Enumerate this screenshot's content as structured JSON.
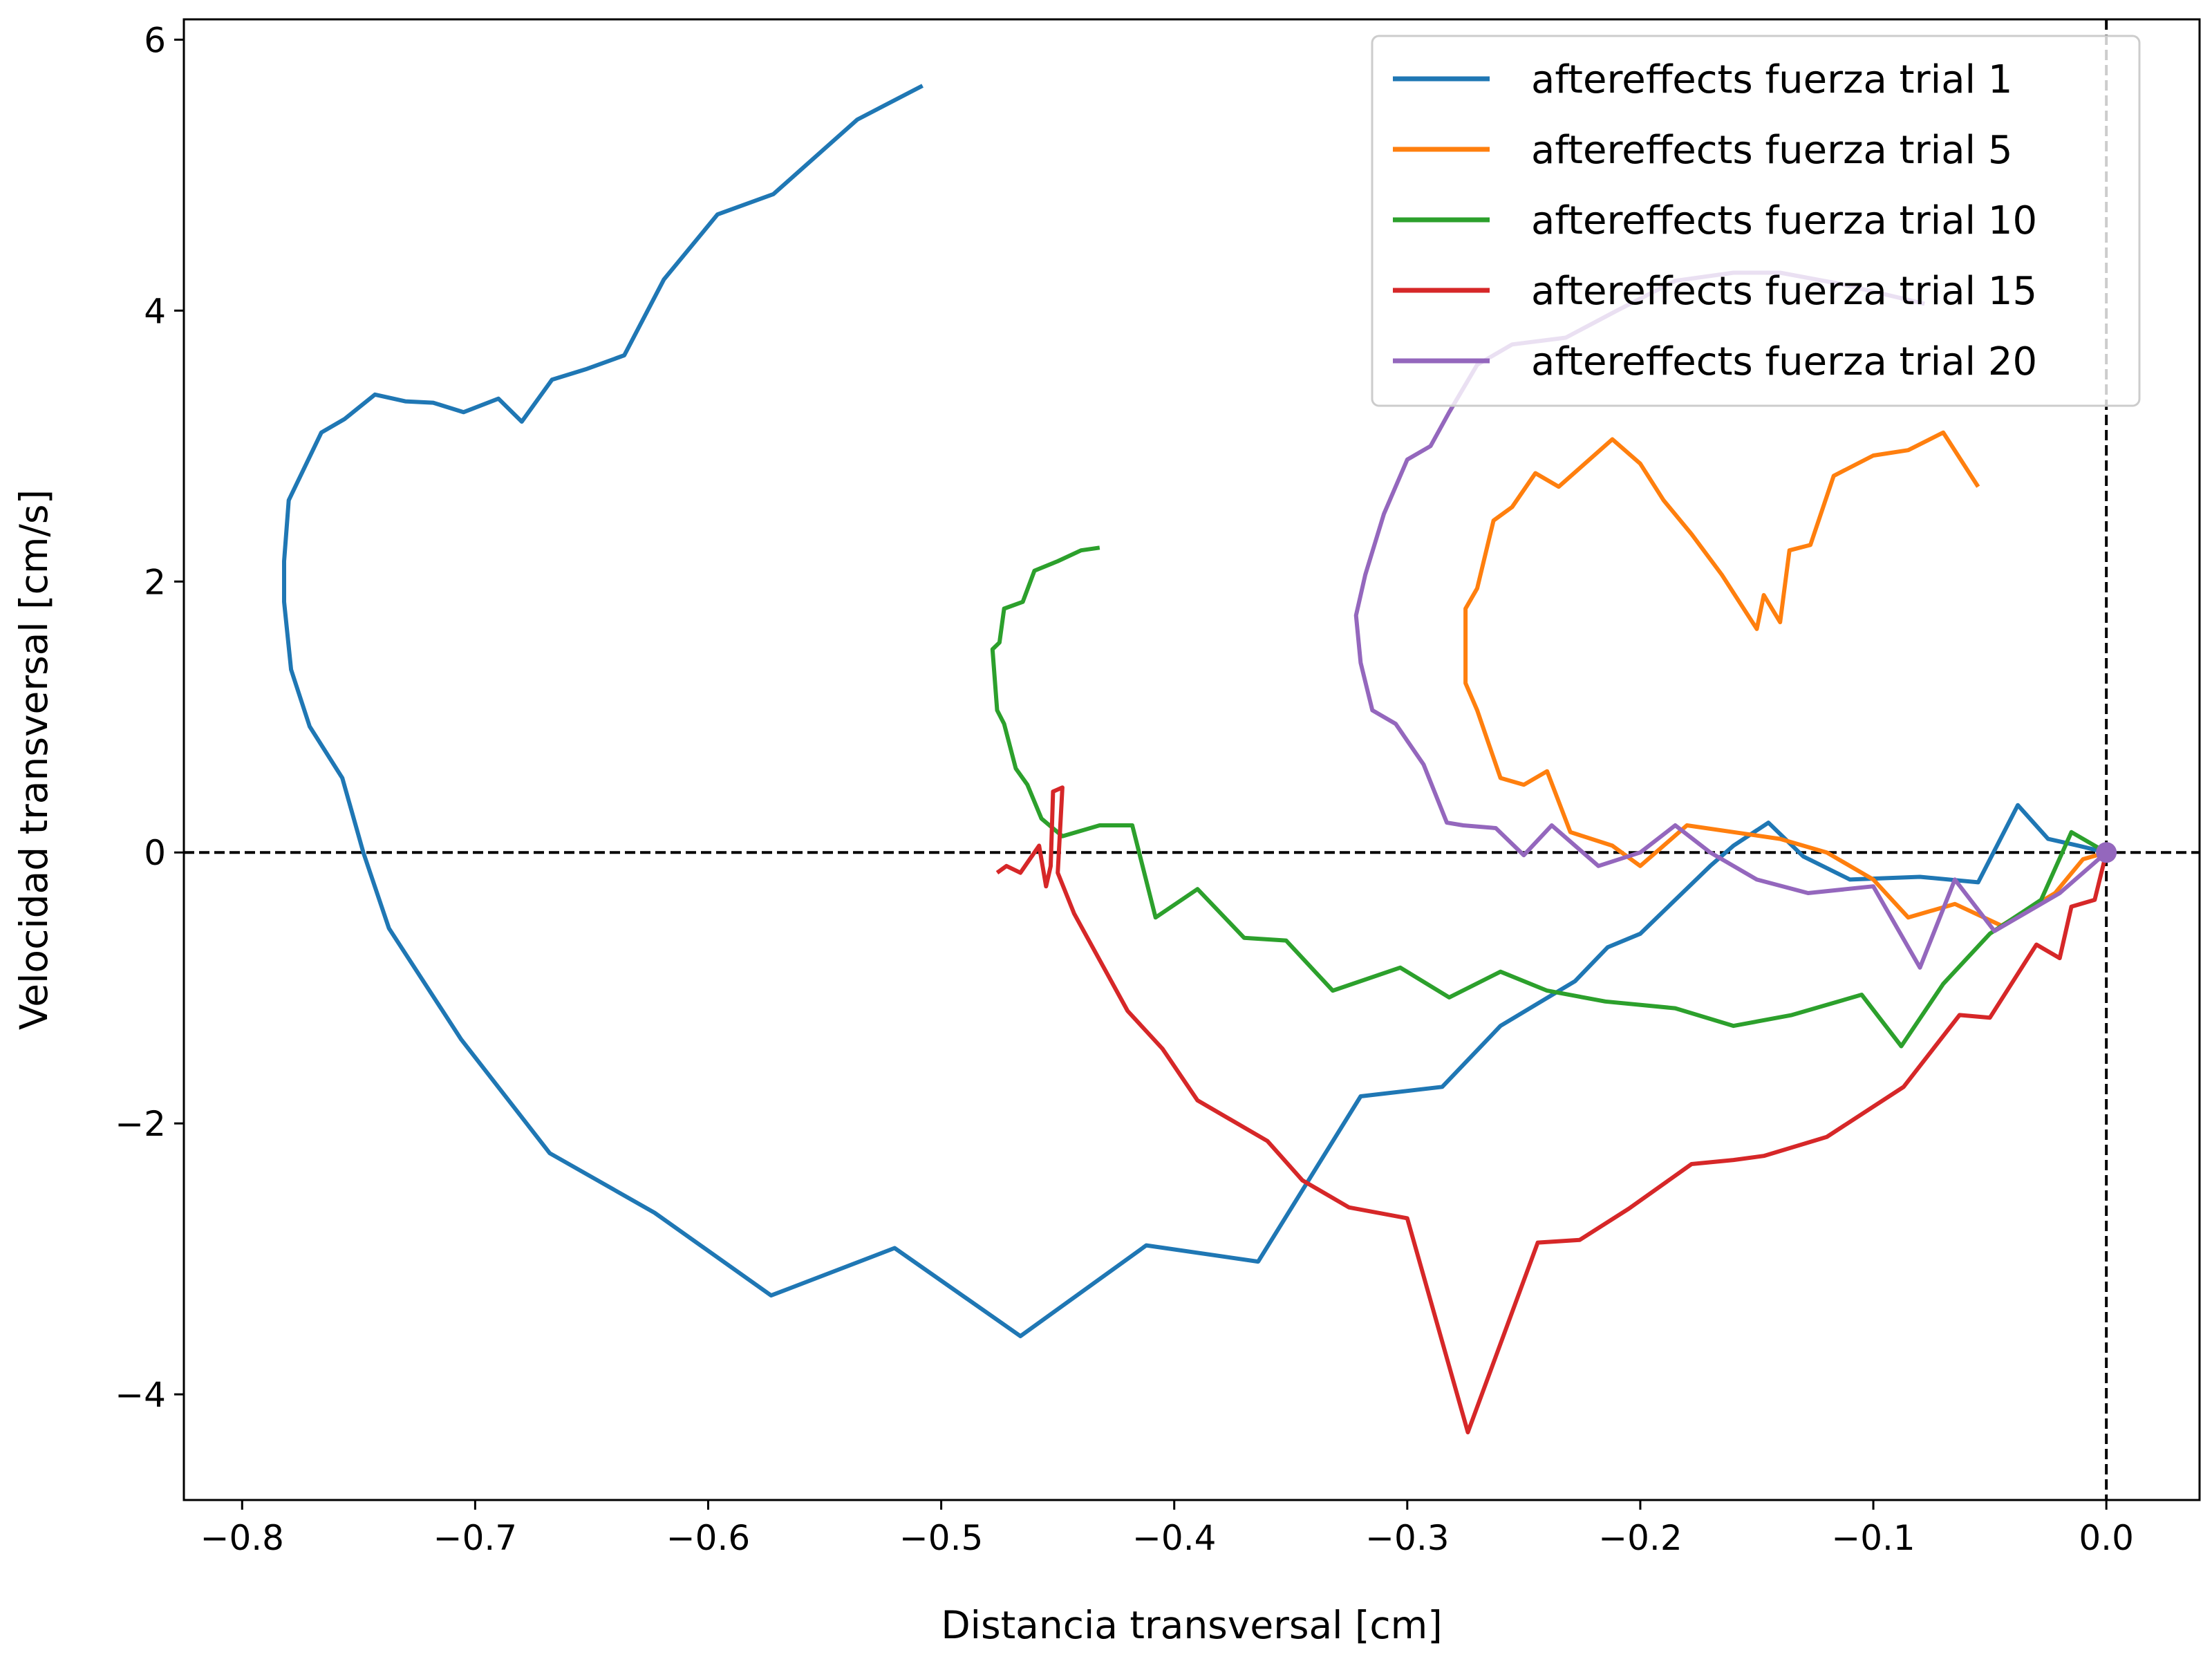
{
  "chart_data": {
    "type": "line",
    "title": "",
    "xlabel": "Distancia transversal [cm]",
    "ylabel": "Velocidad transversal [cm/s]",
    "xlim": [
      -0.825,
      0.04
    ],
    "ylim": [
      -4.78,
      6.15
    ],
    "x_ticks": [
      -0.8,
      -0.7,
      -0.6,
      -0.5,
      -0.4,
      -0.3,
      -0.2,
      -0.1,
      0.0
    ],
    "x_tick_labels": [
      "−0.8",
      "−0.7",
      "−0.6",
      "−0.5",
      "−0.4",
      "−0.3",
      "−0.2",
      "−0.1",
      "0.0"
    ],
    "y_ticks": [
      -4,
      -2,
      0,
      2,
      4,
      6
    ],
    "y_tick_labels": [
      "−4",
      "−2",
      "0",
      "2",
      "4",
      "6"
    ],
    "grid": false,
    "reference_lines": {
      "horizontal_y": 0,
      "vertical_x": 0,
      "style": "dashed",
      "color": "#000000"
    },
    "legend_position": "top-right",
    "end_marker": {
      "x": 0.0,
      "y": 0.0,
      "color": "#9467bd"
    },
    "series": [
      {
        "name": "aftereffects fuerza trial 1",
        "color": "#1f77b4",
        "points": [
          [
            0,
            0
          ],
          [
            -0.012,
            0.05
          ],
          [
            -0.025,
            0.1
          ],
          [
            -0.038,
            0.35
          ],
          [
            -0.055,
            -0.22
          ],
          [
            -0.08,
            -0.18
          ],
          [
            -0.11,
            -0.2
          ],
          [
            -0.13,
            -0.03
          ],
          [
            -0.145,
            0.22
          ],
          [
            -0.16,
            0.05
          ],
          [
            -0.17,
            -0.1
          ],
          [
            -0.2,
            -0.6
          ],
          [
            -0.214,
            -0.7
          ],
          [
            -0.228,
            -0.95
          ],
          [
            -0.26,
            -1.28
          ],
          [
            -0.285,
            -1.73
          ],
          [
            -0.32,
            -1.8
          ],
          [
            -0.364,
            -3.02
          ],
          [
            -0.412,
            -2.9
          ],
          [
            -0.466,
            -3.57
          ],
          [
            -0.52,
            -2.92
          ],
          [
            -0.573,
            -3.27
          ],
          [
            -0.623,
            -2.66
          ],
          [
            -0.668,
            -2.22
          ],
          [
            -0.706,
            -1.38
          ],
          [
            -0.737,
            -0.56
          ],
          [
            -0.748,
            0
          ],
          [
            -0.757,
            0.55
          ],
          [
            -0.771,
            0.93
          ],
          [
            -0.779,
            1.35
          ],
          [
            -0.782,
            1.85
          ],
          [
            -0.782,
            2.15
          ],
          [
            -0.78,
            2.6
          ],
          [
            -0.766,
            3.1
          ],
          [
            -0.756,
            3.2
          ],
          [
            -0.743,
            3.38
          ],
          [
            -0.73,
            3.33
          ],
          [
            -0.718,
            3.32
          ],
          [
            -0.705,
            3.25
          ],
          [
            -0.69,
            3.35
          ],
          [
            -0.68,
            3.18
          ],
          [
            -0.667,
            3.49
          ],
          [
            -0.652,
            3.57
          ],
          [
            -0.636,
            3.67
          ],
          [
            -0.619,
            4.23
          ],
          [
            -0.596,
            4.71
          ],
          [
            -0.572,
            4.86
          ],
          [
            -0.536,
            5.41
          ],
          [
            -0.508,
            5.66
          ]
        ]
      },
      {
        "name": "aftereffects fuerza trial 5",
        "color": "#ff7f0e",
        "points": [
          [
            0,
            0
          ],
          [
            -0.01,
            -0.05
          ],
          [
            -0.022,
            -0.3
          ],
          [
            -0.045,
            -0.54
          ],
          [
            -0.065,
            -0.38
          ],
          [
            -0.085,
            -0.48
          ],
          [
            -0.1,
            -0.2
          ],
          [
            -0.12,
            0
          ],
          [
            -0.14,
            0.1
          ],
          [
            -0.16,
            0.15
          ],
          [
            -0.18,
            0.2
          ],
          [
            -0.2,
            -0.1
          ],
          [
            -0.212,
            0.05
          ],
          [
            -0.23,
            0.15
          ],
          [
            -0.24,
            0.6
          ],
          [
            -0.25,
            0.5
          ],
          [
            -0.26,
            0.55
          ],
          [
            -0.265,
            0.8
          ],
          [
            -0.27,
            1.05
          ],
          [
            -0.275,
            1.25
          ],
          [
            -0.275,
            1.8
          ],
          [
            -0.27,
            1.95
          ],
          [
            -0.263,
            2.45
          ],
          [
            -0.255,
            2.55
          ],
          [
            -0.245,
            2.8
          ],
          [
            -0.235,
            2.7
          ],
          [
            -0.212,
            3.05
          ],
          [
            -0.2,
            2.87
          ],
          [
            -0.19,
            2.6
          ],
          [
            -0.178,
            2.35
          ],
          [
            -0.165,
            2.05
          ],
          [
            -0.15,
            1.65
          ],
          [
            -0.147,
            1.9
          ],
          [
            -0.14,
            1.7
          ],
          [
            -0.136,
            2.23
          ],
          [
            -0.127,
            2.27
          ],
          [
            -0.117,
            2.78
          ],
          [
            -0.1,
            2.93
          ],
          [
            -0.085,
            2.97
          ],
          [
            -0.07,
            3.1
          ],
          [
            -0.055,
            2.7
          ]
        ]
      },
      {
        "name": "aftereffects fuerza trial 10",
        "color": "#2ca02c",
        "points": [
          [
            0,
            0
          ],
          [
            -0.015,
            0.15
          ],
          [
            -0.028,
            -0.35
          ],
          [
            -0.05,
            -0.6
          ],
          [
            -0.07,
            -0.97
          ],
          [
            -0.088,
            -1.43
          ],
          [
            -0.105,
            -1.05
          ],
          [
            -0.135,
            -1.2
          ],
          [
            -0.16,
            -1.28
          ],
          [
            -0.185,
            -1.15
          ],
          [
            -0.215,
            -1.1
          ],
          [
            -0.24,
            -1.02
          ],
          [
            -0.26,
            -0.88
          ],
          [
            -0.282,
            -1.07
          ],
          [
            -0.303,
            -0.85
          ],
          [
            -0.332,
            -1.02
          ],
          [
            -0.352,
            -0.65
          ],
          [
            -0.37,
            -0.63
          ],
          [
            -0.39,
            -0.27
          ],
          [
            -0.408,
            -0.48
          ],
          [
            -0.418,
            0.2
          ],
          [
            -0.432,
            0.2
          ],
          [
            -0.448,
            0.12
          ],
          [
            -0.457,
            0.25
          ],
          [
            -0.463,
            0.5
          ],
          [
            -0.468,
            0.62
          ],
          [
            -0.473,
            0.95
          ],
          [
            -0.476,
            1.05
          ],
          [
            -0.478,
            1.5
          ],
          [
            -0.475,
            1.55
          ],
          [
            -0.473,
            1.8
          ],
          [
            -0.465,
            1.85
          ],
          [
            -0.46,
            2.08
          ],
          [
            -0.45,
            2.15
          ],
          [
            -0.44,
            2.23
          ],
          [
            -0.432,
            2.25
          ]
        ]
      },
      {
        "name": "aftereffects fuerza trial 15",
        "color": "#d62728",
        "points": [
          [
            0,
            0
          ],
          [
            -0.005,
            -0.35
          ],
          [
            -0.015,
            -0.4
          ],
          [
            -0.02,
            -0.78
          ],
          [
            -0.03,
            -0.68
          ],
          [
            -0.05,
            -1.22
          ],
          [
            -0.063,
            -1.2
          ],
          [
            -0.087,
            -1.73
          ],
          [
            -0.12,
            -2.1
          ],
          [
            -0.147,
            -2.24
          ],
          [
            -0.16,
            -2.27
          ],
          [
            -0.178,
            -2.3
          ],
          [
            -0.205,
            -2.63
          ],
          [
            -0.226,
            -2.86
          ],
          [
            -0.244,
            -2.88
          ],
          [
            -0.274,
            -4.28
          ],
          [
            -0.3,
            -2.7
          ],
          [
            -0.325,
            -2.62
          ],
          [
            -0.345,
            -2.42
          ],
          [
            -0.36,
            -2.13
          ],
          [
            -0.39,
            -1.83
          ],
          [
            -0.405,
            -1.45
          ],
          [
            -0.42,
            -1.17
          ],
          [
            -0.435,
            -0.7
          ],
          [
            -0.443,
            -0.45
          ],
          [
            -0.45,
            -0.15
          ],
          [
            -0.448,
            0.48
          ],
          [
            -0.452,
            0.45
          ],
          [
            -0.453,
            -0.1
          ],
          [
            -0.455,
            -0.25
          ],
          [
            -0.458,
            0.05
          ],
          [
            -0.462,
            -0.05
          ],
          [
            -0.466,
            -0.15
          ],
          [
            -0.472,
            -0.1
          ],
          [
            -0.476,
            -0.15
          ]
        ]
      },
      {
        "name": "aftereffects fuerza trial 20",
        "color": "#9467bd",
        "points": [
          [
            0,
            0
          ],
          [
            -0.02,
            -0.3
          ],
          [
            -0.048,
            -0.58
          ],
          [
            -0.065,
            -0.2
          ],
          [
            -0.08,
            -0.85
          ],
          [
            -0.1,
            -0.25
          ],
          [
            -0.128,
            -0.3
          ],
          [
            -0.15,
            -0.2
          ],
          [
            -0.17,
            0
          ],
          [
            -0.185,
            0.2
          ],
          [
            -0.2,
            0
          ],
          [
            -0.218,
            -0.1
          ],
          [
            -0.238,
            0.2
          ],
          [
            -0.25,
            -0.02
          ],
          [
            -0.262,
            0.18
          ],
          [
            -0.276,
            0.2
          ],
          [
            -0.283,
            0.22
          ],
          [
            -0.293,
            0.65
          ],
          [
            -0.305,
            0.95
          ],
          [
            -0.315,
            1.05
          ],
          [
            -0.32,
            1.4
          ],
          [
            -0.322,
            1.75
          ],
          [
            -0.318,
            2.05
          ],
          [
            -0.31,
            2.5
          ],
          [
            -0.3,
            2.9
          ],
          [
            -0.29,
            3.0
          ],
          [
            -0.282,
            3.25
          ],
          [
            -0.27,
            3.6
          ],
          [
            -0.255,
            3.75
          ],
          [
            -0.232,
            3.8
          ],
          [
            -0.21,
            4.0
          ],
          [
            -0.185,
            4.22
          ],
          [
            -0.16,
            4.28
          ],
          [
            -0.14,
            4.28
          ],
          [
            -0.115,
            4.2
          ],
          [
            -0.095,
            4.12
          ],
          [
            -0.078,
            4.05
          ]
        ]
      }
    ]
  }
}
